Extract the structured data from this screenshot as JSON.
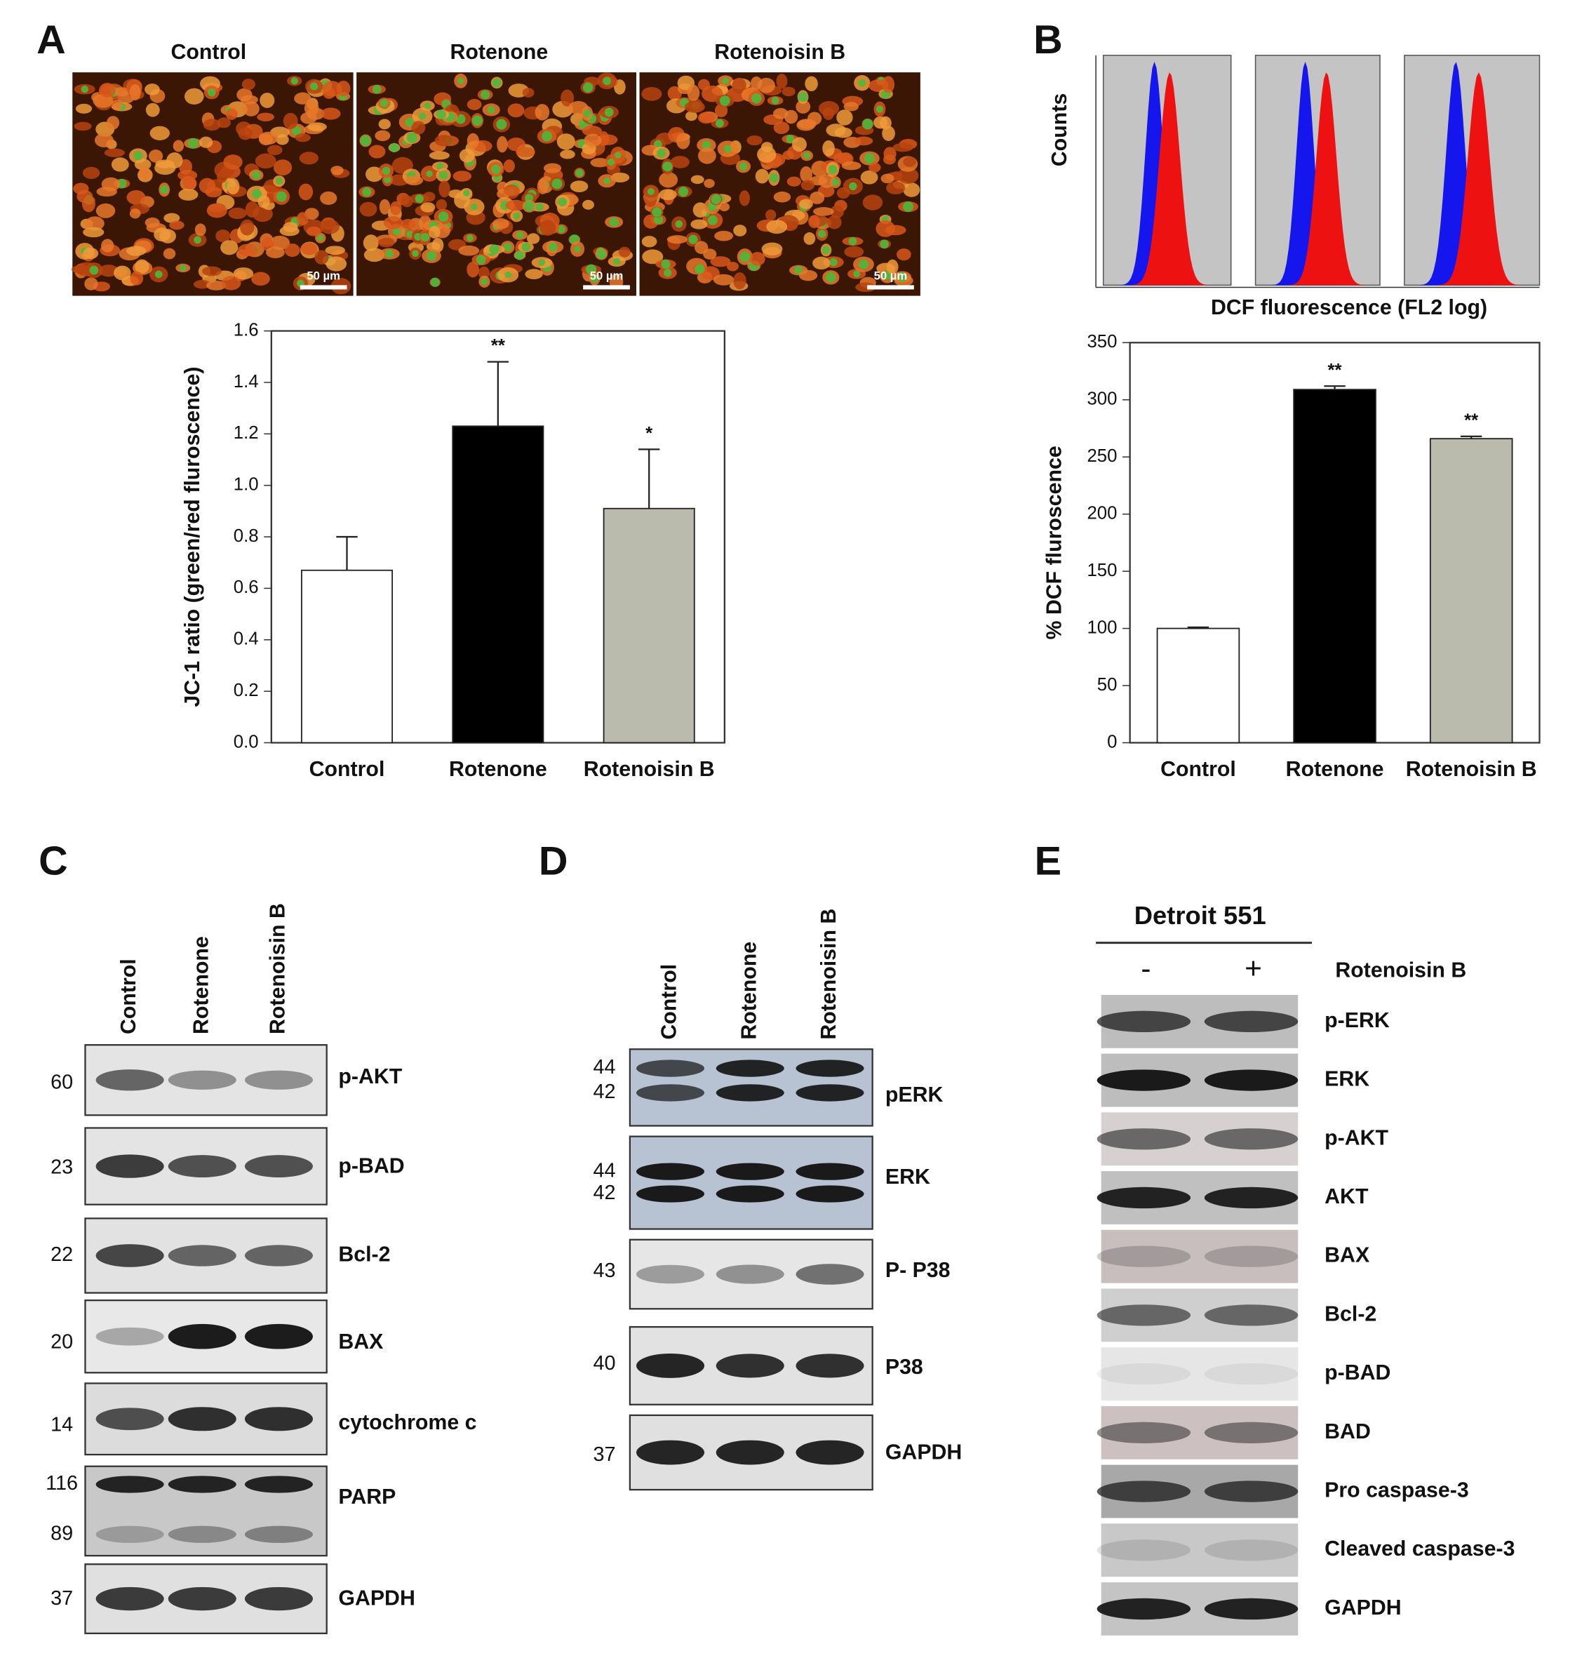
{
  "panels": [
    "A",
    "B",
    "C",
    "D",
    "E"
  ],
  "micrographs": {
    "labels": [
      "Control",
      "Rotenone",
      "Rotenoisin B"
    ],
    "scale_bar": "50 µm"
  },
  "flow": {
    "y_label": "Counts",
    "x_label": "DCF fluorescence (FL2 log)"
  },
  "chart_data": [
    {
      "type": "bar",
      "y_label": "JC-1 ratio (green/red fluroscence)",
      "categories": [
        "Control",
        "Rotenone",
        "Rotenoisin B"
      ],
      "values": [
        0.67,
        1.23,
        0.91
      ],
      "errors": [
        0.13,
        0.25,
        0.23
      ],
      "significance": [
        null,
        "**",
        "*"
      ],
      "colors": [
        "#ffffff",
        "#000000",
        "#bbbbad"
      ],
      "ylim": [
        0,
        1.6
      ],
      "yticks": [
        {
          "value": 0,
          "label": "0.0"
        },
        0.2,
        0.4,
        0.6,
        0.8,
        {
          "value": 1,
          "label": "1.0"
        },
        1.2,
        1.4,
        1.6
      ]
    },
    {
      "type": "bar",
      "y_label": "% DCF fluroscence",
      "categories": [
        "Control",
        "Rotenone",
        "Rotenoisin B"
      ],
      "values": [
        100,
        309,
        266
      ],
      "errors": [
        1,
        3,
        2
      ],
      "significance": [
        null,
        "**",
        "**"
      ],
      "colors": [
        "#ffffff",
        "#000000",
        "#bbbbad"
      ],
      "ylim": [
        0,
        350
      ],
      "yticks": [
        0,
        50,
        100,
        150,
        200,
        250,
        300,
        350
      ]
    }
  ],
  "blot_c": {
    "lanes": [
      "Control",
      "Rotenone",
      "Rotenoisin B"
    ],
    "rows": [
      {
        "label": "p-AKT",
        "markers": [
          "60"
        ]
      },
      {
        "label": "p-BAD",
        "markers": [
          "23"
        ]
      },
      {
        "label": "Bcl-2",
        "markers": [
          "22"
        ]
      },
      {
        "label": "BAX",
        "markers": [
          "20"
        ]
      },
      {
        "label": "cytochrome c",
        "markers": [
          "14"
        ]
      },
      {
        "label": "PARP",
        "markers": [
          "116",
          "89"
        ]
      },
      {
        "label": "GAPDH",
        "markers": [
          "37"
        ]
      }
    ]
  },
  "blot_d": {
    "lanes": [
      "Control",
      "Rotenone",
      "Rotenoisin B"
    ],
    "rows": [
      {
        "label": "pERK",
        "markers": [
          "44",
          "42"
        ]
      },
      {
        "label": "ERK",
        "markers": [
          "44",
          "42"
        ]
      },
      {
        "label": "P- P38",
        "markers": [
          "43"
        ]
      },
      {
        "label": "P38",
        "markers": [
          "40"
        ]
      },
      {
        "label": "GAPDH",
        "markers": [
          "37"
        ]
      }
    ]
  },
  "blot_e": {
    "cell_line": "Detroit 551",
    "treatment": "Rotenoisin B",
    "lanes": [
      "-",
      "+"
    ],
    "rows": [
      "p-ERK",
      "ERK",
      "p-AKT",
      "AKT",
      "BAX",
      "Bcl-2",
      "p-BAD",
      "BAD",
      "Pro caspase-3",
      "Cleaved caspase-3",
      "GAPDH"
    ]
  }
}
